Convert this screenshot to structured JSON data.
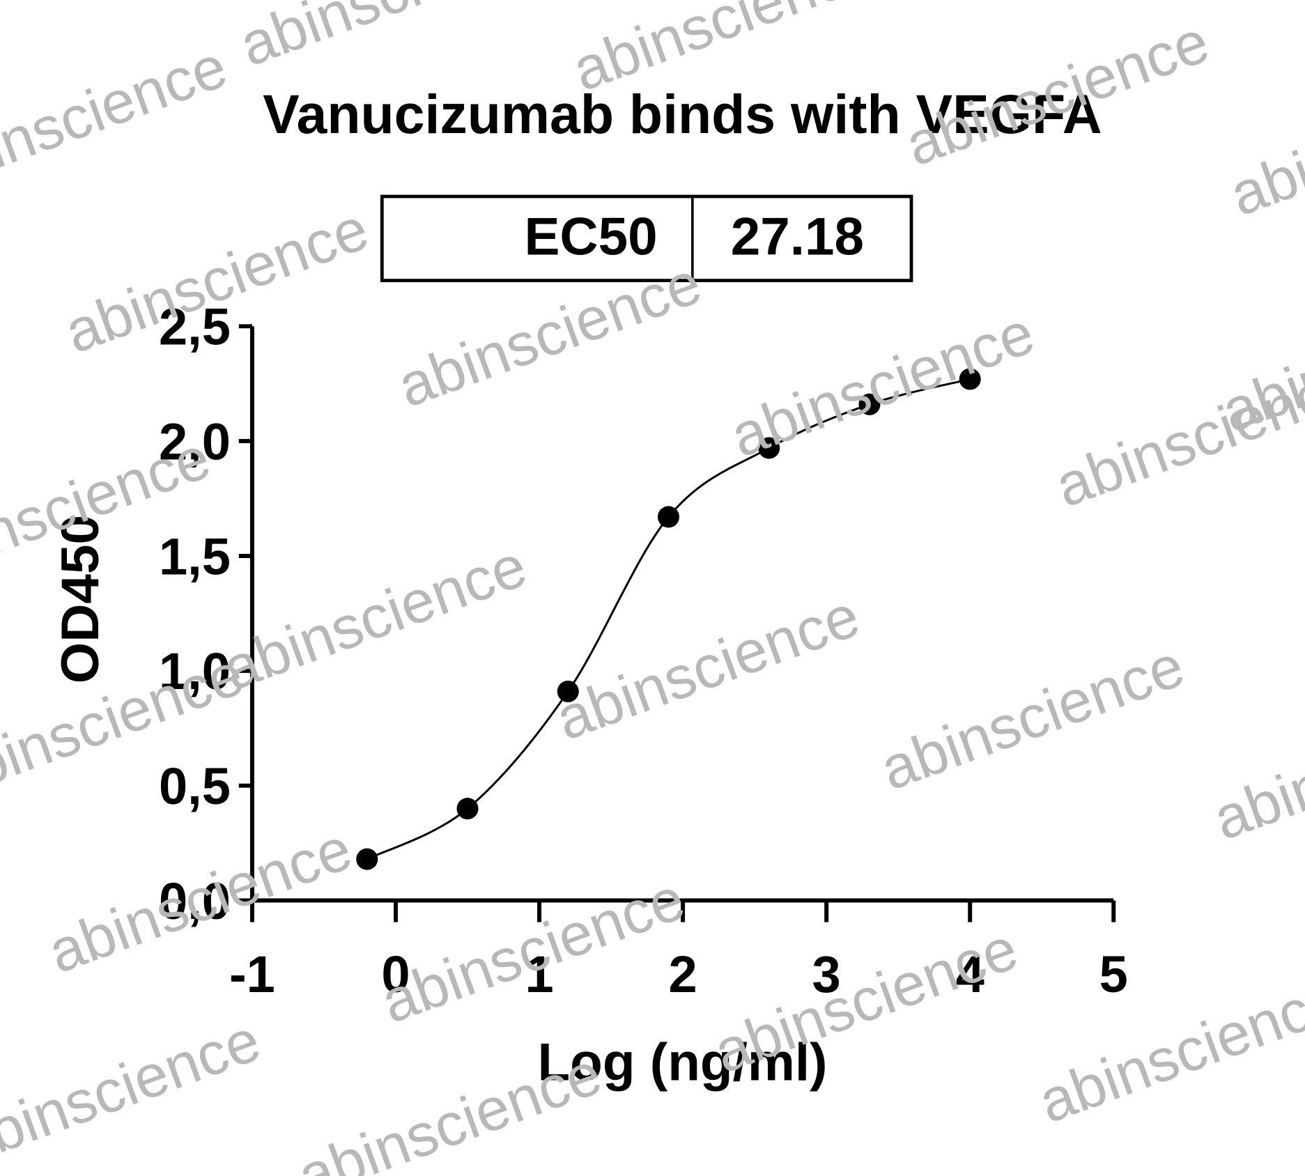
{
  "chart_data": {
    "type": "scatter",
    "title": "Vanucizumab binds with VEGFA",
    "x_label": "Log (ng/ml)",
    "y_label": "OD450",
    "ec50": {
      "label": "EC50",
      "value": "27.18"
    },
    "watermark": "abinscience",
    "color": "#000000",
    "x": [
      -0.2,
      0.5,
      1.2,
      1.9,
      2.6,
      3.3,
      4.0
    ],
    "values": [
      0.18,
      0.4,
      0.91,
      1.67,
      1.97,
      2.16,
      2.27
    ],
    "xlim": [
      -1,
      5
    ],
    "xticks": [
      -1,
      0,
      1,
      2,
      3,
      4,
      5
    ],
    "ylim": [
      0,
      2.5
    ],
    "yticks": [
      {
        "value": 0,
        "label": "0,0"
      },
      {
        "value": 0.5,
        "label": "0,5"
      },
      {
        "value": 1,
        "label": "1,0"
      },
      {
        "value": 1.5,
        "label": "1,5"
      },
      {
        "value": 2,
        "label": "2,0"
      },
      {
        "value": 2.5,
        "label": "2,5"
      }
    ]
  }
}
